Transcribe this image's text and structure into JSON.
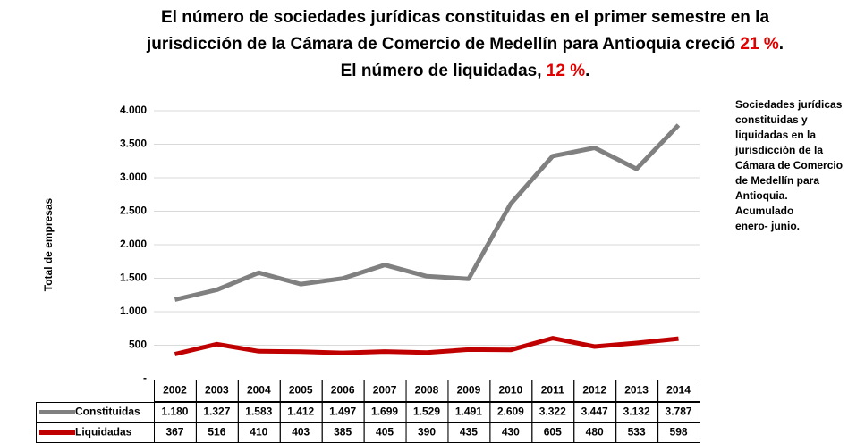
{
  "chart_data": {
    "type": "line",
    "title": [
      [
        {
          "text": "El número de sociedades jurídicas constituidas en el primer semestre en la"
        }
      ],
      [
        {
          "text": "jurisdicción de la Cámara de Comercio de Medellín para Antioquia creció "
        },
        {
          "text": "21 %",
          "highlight": true
        },
        {
          "text": "."
        }
      ],
      [
        {
          "text": "El número de liquidadas, "
        },
        {
          "text": "12 %",
          "highlight": true
        },
        {
          "text": "."
        }
      ]
    ],
    "y_label": "Total de empresas",
    "note": [
      "Sociedades jurídicas",
      "constituidas y",
      "liquidadas en la",
      "jurisdicción de la",
      "Cámara de Comercio",
      "de Medellín para",
      "Antioquia.",
      "Acumulado",
      "enero- junio."
    ],
    "categories": [
      "2002",
      "2003",
      "2004",
      "2005",
      "2006",
      "2007",
      "2008",
      "2009",
      "2010",
      "2011",
      "2012",
      "2013",
      "2014"
    ],
    "series": [
      {
        "name": "Constituidas",
        "color": "#808080",
        "values": [
          1180,
          1327,
          1583,
          1412,
          1497,
          1699,
          1529,
          1491,
          2609,
          3322,
          3447,
          3132,
          3787
        ],
        "value_labels": [
          "1.180",
          "1.327",
          "1.583",
          "1.412",
          "1.497",
          "1.699",
          "1.529",
          "1.491",
          "2.609",
          "3.322",
          "3.447",
          "3.132",
          "3.787"
        ]
      },
      {
        "name": "Liquidadas",
        "color": "#c00000",
        "values": [
          367,
          516,
          410,
          403,
          385,
          405,
          390,
          435,
          430,
          605,
          480,
          533,
          598
        ]
      }
    ],
    "ylim": [
      0,
      4000
    ],
    "yticks": [
      {
        "value": 0,
        "label": "-"
      },
      500,
      {
        "value": 1000,
        "label": "1.000"
      },
      {
        "value": 1500,
        "label": "1.500"
      },
      {
        "value": 2000,
        "label": "2.000"
      },
      {
        "value": 2500,
        "label": "2.500"
      },
      {
        "value": 3000,
        "label": "3.000"
      },
      {
        "value": 3500,
        "label": "3.500"
      },
      {
        "value": 4000,
        "label": "4.000"
      }
    ],
    "grid": true
  }
}
